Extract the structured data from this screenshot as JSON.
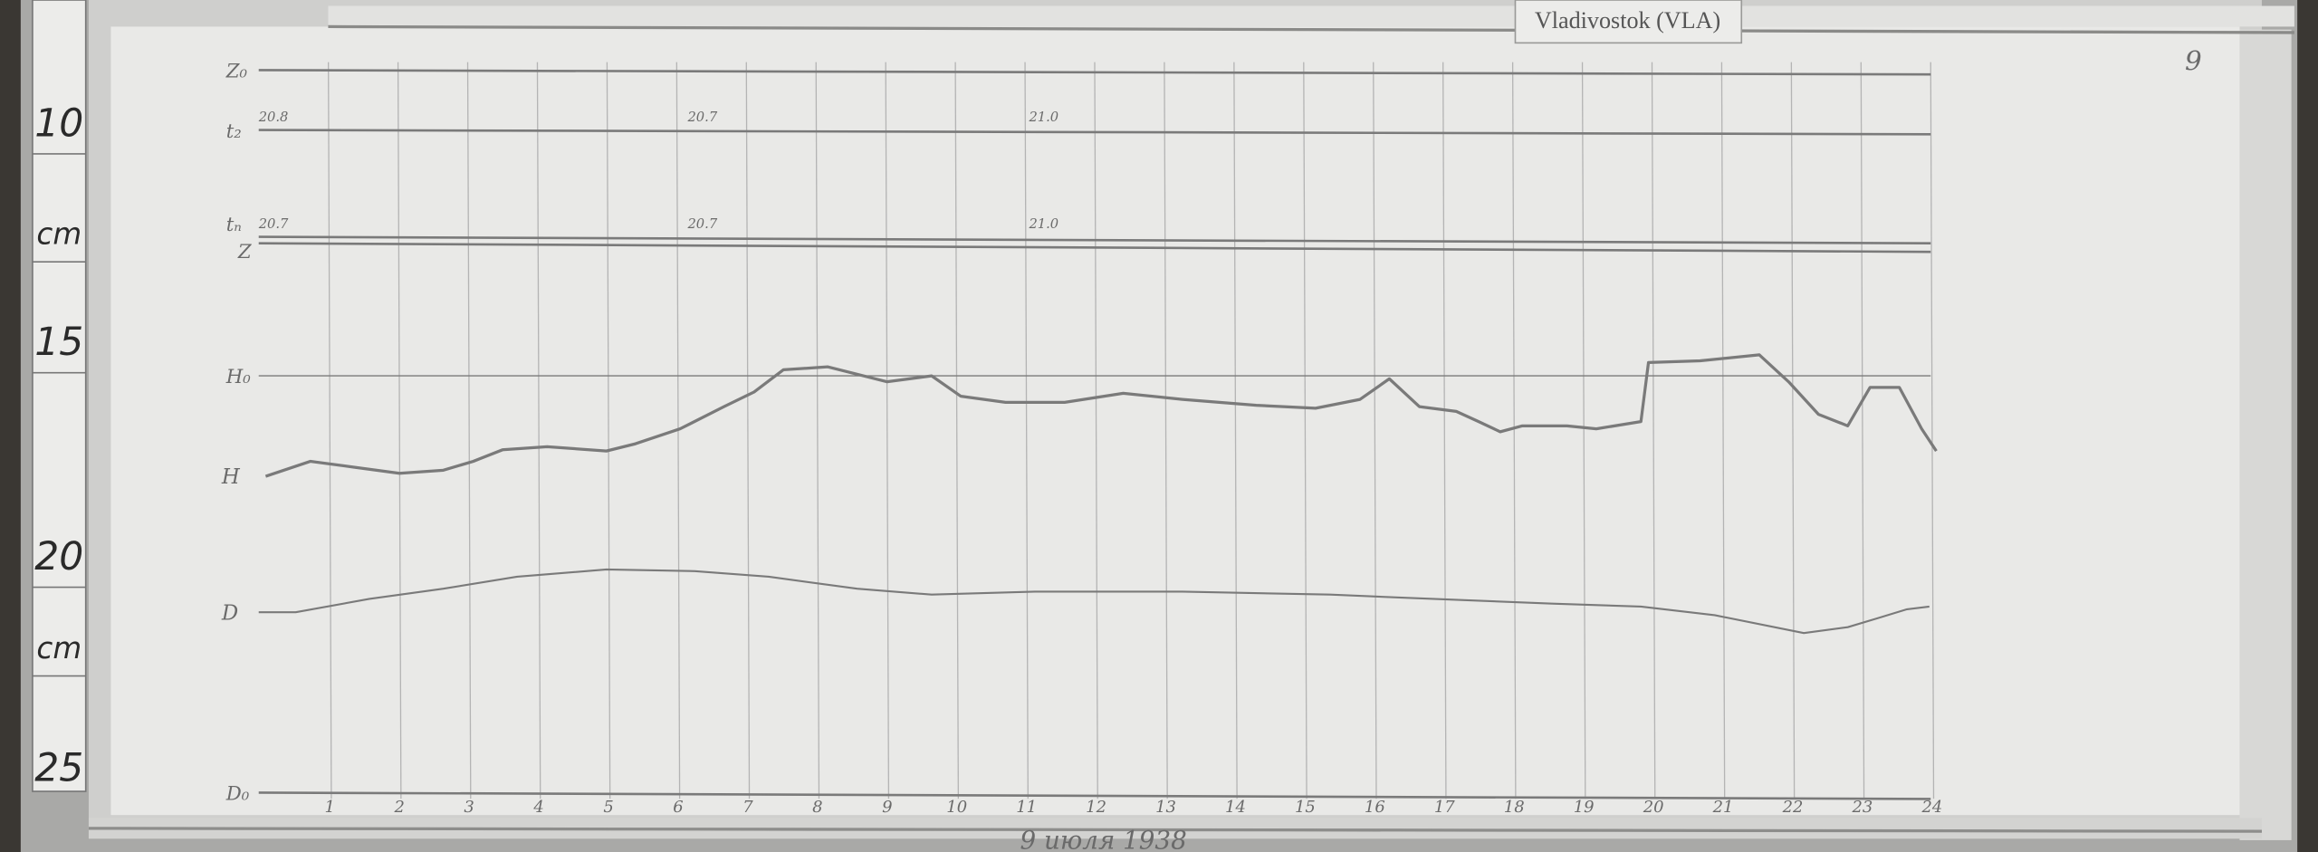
{
  "station_tag": "Vladivostok (VLA)",
  "page_number": "9",
  "caption": "9 июля 1938",
  "ruler": {
    "labels": [
      "10",
      "cm",
      "15",
      "20",
      "cm",
      "25"
    ]
  },
  "colors": {
    "paper": "#e9e9e7",
    "trace": "#7a7a7a",
    "grid": "#b4b4b4",
    "wood": "#3a3733"
  },
  "chart_data": {
    "type": "line",
    "title": "",
    "x_unit": "hours",
    "xlim": [
      0,
      24
    ],
    "y_unit": "cm (ruler scale)",
    "ylim": [
      8,
      26
    ],
    "grid": "vertical hourly lines",
    "hour_labels": [
      "1",
      "2",
      "3",
      "4",
      "5",
      "6",
      "7",
      "8",
      "9",
      "10",
      "11",
      "12",
      "13",
      "14",
      "15",
      "16",
      "17",
      "18",
      "19",
      "20",
      "21",
      "22",
      "23",
      "24"
    ],
    "baselines": [
      {
        "label": "Z₀",
        "y": 8.7,
        "y_end": 8.8
      },
      {
        "label": "t₂",
        "y": 10.1,
        "y_end": 10.2,
        "temps": [
          {
            "hour": 0,
            "text": "20.8"
          },
          {
            "hour": 6.2,
            "text": "20.7"
          },
          {
            "hour": 11.1,
            "text": "21.0"
          }
        ]
      },
      {
        "label": "tₙ",
        "y": 12.6,
        "y_end": 12.75,
        "temps": [
          {
            "hour": 0,
            "text": "20.7"
          },
          {
            "hour": 6.2,
            "text": "20.7"
          },
          {
            "hour": 11.1,
            "text": "21.0"
          }
        ]
      },
      {
        "label": "Z",
        "y": 12.75,
        "y_end": 12.95
      },
      {
        "label": "H₀",
        "y": 15.85,
        "y_end": 15.85
      },
      {
        "label": "D₀",
        "y": 25.6,
        "y_end": 25.75
      }
    ],
    "series": [
      {
        "name": "H",
        "x": [
          0.1,
          0.74,
          1.38,
          2.02,
          2.65,
          3.08,
          3.5,
          4.14,
          4.99,
          5.41,
          6.05,
          6.68,
          7.11,
          7.53,
          8.17,
          9.02,
          9.66,
          10.08,
          10.72,
          11.57,
          12.41,
          13.26,
          14.32,
          15.17,
          15.81,
          16.23,
          16.66,
          17.19,
          17.51,
          17.82,
          18.14,
          18.78,
          19.2,
          19.84,
          19.95,
          20.69,
          21.54,
          21.96,
          22.39,
          22.81,
          23.13,
          23.55,
          23.87,
          24.08
        ],
        "y": [
          18.2,
          17.85,
          17.99,
          18.13,
          18.06,
          17.85,
          17.58,
          17.51,
          17.61,
          17.44,
          17.09,
          16.57,
          16.23,
          15.71,
          15.64,
          15.99,
          15.85,
          16.33,
          16.47,
          16.47,
          16.26,
          16.4,
          16.54,
          16.61,
          16.4,
          15.92,
          16.57,
          16.68,
          16.92,
          17.16,
          17.02,
          17.02,
          17.09,
          16.92,
          15.54,
          15.5,
          15.36,
          15.99,
          16.75,
          17.02,
          16.12,
          16.12,
          17.09,
          17.61
        ]
      },
      {
        "name": "D",
        "x": [
          0,
          0.53,
          1.59,
          2.65,
          3.71,
          4.99,
          6.26,
          7.32,
          8.59,
          9.66,
          11.14,
          13.26,
          15.38,
          16.45,
          17.51,
          18.57,
          19.84,
          20.9,
          22.18,
          22.81,
          23.24,
          23.66,
          23.98
        ],
        "y": [
          21.38,
          21.38,
          21.07,
          20.83,
          20.55,
          20.38,
          20.42,
          20.55,
          20.83,
          20.97,
          20.9,
          20.9,
          20.97,
          21.04,
          21.11,
          21.18,
          21.25,
          21.45,
          21.87,
          21.73,
          21.52,
          21.31,
          21.25
        ]
      }
    ]
  }
}
